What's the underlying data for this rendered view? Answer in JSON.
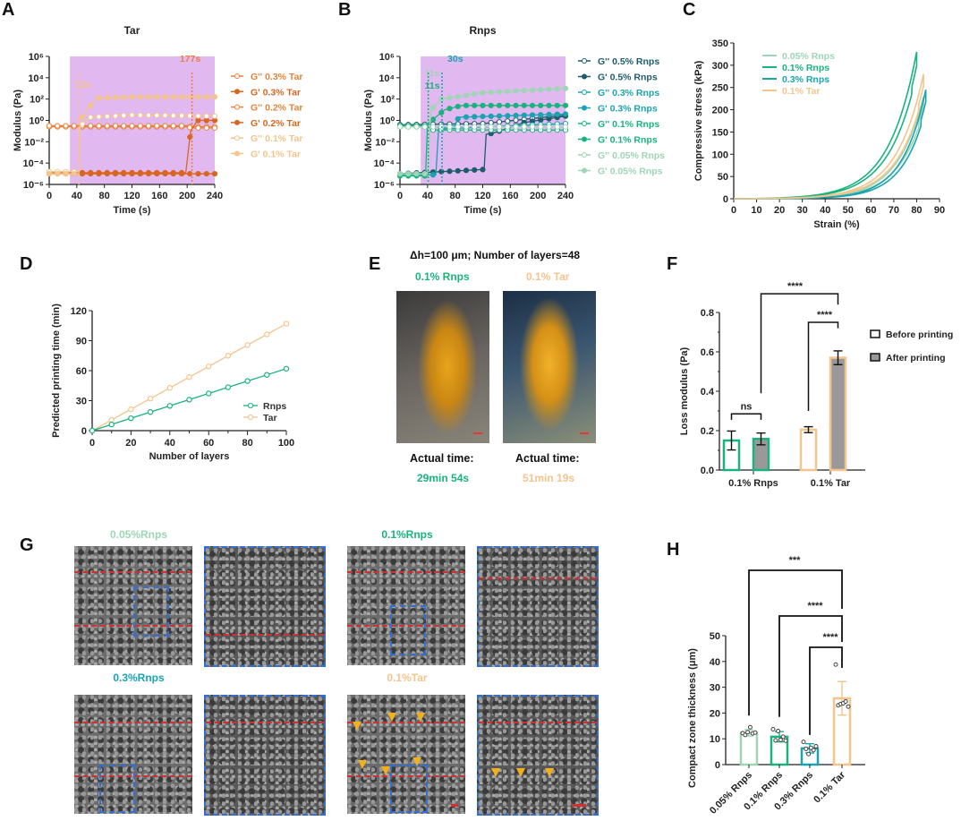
{
  "panels": {
    "A": "A",
    "B": "B",
    "C": "C",
    "D": "D",
    "E": "E",
    "F": "F",
    "G": "G",
    "H": "H"
  },
  "colors": {
    "tar_dark": "#d9661f",
    "tar_mid": "#e8823a",
    "tar_light": "#f3c48c",
    "rnps_05": "#1d5c6b",
    "rnps_03": "#1aa3b0",
    "rnps_01": "#19b37d",
    "rnps_005": "#9ed6b5",
    "shade": "#e2b8f0",
    "sem_box": "#2f6fd6",
    "sem_line": "#d32f2f",
    "arrow": "#f2b01e",
    "after_fill": "#999999"
  },
  "chart_data": [
    {
      "id": "A",
      "type": "line",
      "title": "Tar",
      "xlabel": "Time (s)",
      "ylabel": "Modulus (Pa)",
      "yscale": "log",
      "xlim": [
        0,
        240
      ],
      "ylim_exp": [
        -6,
        6
      ],
      "xticks": [
        "0",
        "40",
        "80",
        "120",
        "160",
        "200",
        "240"
      ],
      "yticks": [
        "10⁶",
        "10⁴",
        "10²",
        "10⁰",
        "10⁻²",
        "10⁻⁴",
        "10⁻⁶"
      ],
      "shaded_region": [
        30,
        240
      ],
      "annotations": [
        {
          "text": "13s",
          "x": 43,
          "color": "tar_light"
        },
        {
          "text": "177s",
          "x": 207,
          "color": "tar_mid"
        }
      ],
      "legend_position": "right",
      "series": [
        {
          "name": "G'' 0.3% Tar",
          "color": "tar_mid",
          "marker": "open",
          "x": [
            0,
            240
          ],
          "log10y": [
            -0.6,
            -0.6
          ]
        },
        {
          "name": "G' 0.3% Tar",
          "color": "tar_dark",
          "marker": "filled",
          "x": [
            0,
            240
          ],
          "log10y": [
            -5.0,
            -5.0
          ]
        },
        {
          "name": "G'' 0.2% Tar",
          "color": "tar_mid",
          "marker": "open",
          "x": [
            0,
            200,
            205,
            240
          ],
          "log10y": [
            -0.5,
            -0.5,
            -0.7,
            -0.7
          ]
        },
        {
          "name": "G' 0.2% Tar",
          "color": "tar_dark",
          "marker": "filled",
          "x": [
            0,
            198,
            205,
            215,
            240
          ],
          "log10y": [
            -4.9,
            -4.9,
            -1.0,
            0.0,
            0.0
          ]
        },
        {
          "name": "G'' 0.1% Tar",
          "color": "tar_light",
          "marker": "open",
          "x": [
            0,
            43,
            45,
            60,
            120,
            240
          ],
          "log10y": [
            -4.8,
            -4.8,
            -0.5,
            0.3,
            0.5,
            0.4
          ]
        },
        {
          "name": "G' 0.1% Tar",
          "color": "tar_light",
          "marker": "filled",
          "x": [
            0,
            43,
            45,
            55,
            70,
            120,
            240
          ],
          "log10y": [
            -5.0,
            -5.0,
            0.0,
            1.0,
            2.1,
            2.2,
            2.2
          ]
        }
      ]
    },
    {
      "id": "B",
      "type": "line",
      "title": "Rnps",
      "xlabel": "Time (s)",
      "ylabel": "Modulus (Pa)",
      "yscale": "log",
      "xlim": [
        0,
        240
      ],
      "ylim_exp": [
        -6,
        6
      ],
      "xticks": [
        "0",
        "40",
        "80",
        "120",
        "160",
        "200",
        "240"
      ],
      "yticks": [
        "10⁶",
        "10⁴",
        "10²",
        "10⁰",
        "10⁻²",
        "10⁻⁴",
        "10⁻⁶"
      ],
      "shaded_region": [
        30,
        240
      ],
      "annotations": [
        {
          "text": "11s",
          "x": 41,
          "color": "rnps_005"
        },
        {
          "text": "11s",
          "x": 41,
          "color": "rnps_01"
        },
        {
          "text": "30s",
          "x": 61,
          "color": "rnps_03"
        }
      ],
      "legend_position": "right",
      "series": [
        {
          "name": "G'' 0.5% Rnps",
          "color": "rnps_05",
          "marker": "open",
          "x": [
            0,
            120,
            240
          ],
          "log10y": [
            -0.4,
            -0.3,
            0.5
          ]
        },
        {
          "name": "G' 0.5% Rnps",
          "color": "rnps_05",
          "marker": "filled",
          "x": [
            0,
            122,
            125,
            135,
            180,
            240
          ],
          "log10y": [
            -5.0,
            -4.6,
            -1.3,
            -1.2,
            -0.2,
            0.4
          ]
        },
        {
          "name": "G'' 0.3% Rnps",
          "color": "rnps_03",
          "marker": "open",
          "x": [
            0,
            55,
            60,
            240
          ],
          "log10y": [
            -0.6,
            -0.6,
            -0.8,
            -0.3
          ]
        },
        {
          "name": "G' 0.3% Rnps",
          "color": "rnps_03",
          "marker": "filled",
          "x": [
            0,
            52,
            56,
            80,
            85,
            240
          ],
          "log10y": [
            -5.1,
            -5.1,
            -0.8,
            -0.5,
            0.3,
            0.6
          ]
        },
        {
          "name": "G'' 0.1% Rnps",
          "color": "rnps_01",
          "marker": "open",
          "x": [
            0,
            40,
            45,
            240
          ],
          "log10y": [
            -0.5,
            -0.5,
            -0.9,
            -0.9
          ]
        },
        {
          "name": "G' 0.1% Rnps",
          "color": "rnps_01",
          "marker": "filled",
          "x": [
            0,
            37,
            40,
            50,
            65,
            90,
            240
          ],
          "log10y": [
            -5.2,
            -5.2,
            -0.3,
            0.2,
            1.0,
            1.4,
            1.4
          ]
        },
        {
          "name": "G'' 0.05% Rnps",
          "color": "rnps_005",
          "marker": "open",
          "x": [
            0,
            40,
            240
          ],
          "log10y": [
            -0.6,
            -0.6,
            -0.6
          ]
        },
        {
          "name": "G' 0.05% Rnps",
          "color": "rnps_005",
          "marker": "filled",
          "x": [
            0,
            40,
            45,
            60,
            120,
            240
          ],
          "log10y": [
            -5.0,
            -5.0,
            1.0,
            2.0,
            2.6,
            3.0
          ]
        }
      ]
    },
    {
      "id": "C",
      "type": "line",
      "title": "",
      "xlabel": "Strain (%)",
      "ylabel": "Compressive stress (kPa)",
      "xlim": [
        0,
        90
      ],
      "ylim": [
        0,
        350
      ],
      "xticks": [
        "0",
        "10",
        "20",
        "30",
        "40",
        "50",
        "60",
        "70",
        "80",
        "90"
      ],
      "yticks": [
        "0",
        "50",
        "100",
        "150",
        "200",
        "250",
        "300",
        "350"
      ],
      "legend_position": "top-left",
      "series": [
        {
          "name": "0.05% Rnps",
          "color": "rnps_005",
          "peak_strain": 83,
          "peak_stress": 230,
          "k": 0.088
        },
        {
          "name": "0.1% Rnps",
          "color": "rnps_01",
          "peak_strain": 80,
          "peak_stress": 330,
          "k": 0.082
        },
        {
          "name": "0.3% Rnps",
          "color": "rnps_03",
          "peak_strain": 84,
          "peak_stress": 245,
          "k": 0.098
        },
        {
          "name": "0.1% Tar",
          "color": "tar_light",
          "peak_strain": 83,
          "peak_stress": 280,
          "k": 0.085
        }
      ]
    },
    {
      "id": "D",
      "type": "line",
      "xlabel": "Number of layers",
      "ylabel": "Predicted printing time (min)",
      "xlim": [
        0,
        100
      ],
      "ylim": [
        0,
        120
      ],
      "xticks": [
        "0",
        "20",
        "40",
        "60",
        "80",
        "100"
      ],
      "yticks": [
        "0",
        "30",
        "60",
        "90",
        "120"
      ],
      "legend_position": "bottom-right",
      "x": [
        0,
        10,
        20,
        30,
        40,
        50,
        60,
        70,
        80,
        90,
        100
      ],
      "series": [
        {
          "name": "Rnps",
          "color": "rnps_01",
          "values": [
            0,
            6.2,
            12.4,
            18.6,
            24.8,
            31,
            37.2,
            43.4,
            49.6,
            55.8,
            62
          ]
        },
        {
          "name": "Tar",
          "color": "tar_light",
          "values": [
            0,
            10.7,
            21.4,
            32.1,
            42.8,
            53.5,
            64.2,
            74.9,
            85.6,
            96.3,
            107
          ]
        }
      ]
    },
    {
      "id": "F",
      "type": "bar",
      "xlabel": "",
      "ylabel": "Loss modulus (Pa)",
      "ylim": [
        0,
        0.8
      ],
      "yticks": [
        "0.0",
        "0.2",
        "0.4",
        "0.6",
        "0.8"
      ],
      "categories": [
        "0.1% Rnps",
        "0.1% Tar"
      ],
      "legend_position": "right",
      "series": [
        {
          "name": "Before printing",
          "values": [
            0.15,
            0.205
          ],
          "errors": [
            0.048,
            0.015
          ]
        },
        {
          "name": "After printing",
          "values": [
            0.158,
            0.57
          ],
          "errors": [
            0.03,
            0.035
          ]
        }
      ],
      "significance": [
        {
          "label": "ns",
          "from": "0.1% Rnps Before",
          "to": "0.1% Rnps After"
        },
        {
          "label": "****",
          "from": "0.1% Tar Before",
          "to": "0.1% Tar After"
        },
        {
          "label": "****",
          "from": "0.1% Rnps After",
          "to": "0.1% Tar After"
        }
      ]
    },
    {
      "id": "H",
      "type": "bar",
      "ylabel": "Compact zone thickness (μm)",
      "ylim": [
        0,
        50
      ],
      "yticks": [
        "0",
        "10",
        "20",
        "30",
        "40",
        "50"
      ],
      "categories": [
        "0.05% Rnps",
        "0.1% Rnps",
        "0.3% Rnps",
        "0.1% Tar"
      ],
      "values": [
        12.3,
        10.8,
        6.3,
        25.7
      ],
      "errors": [
        1.2,
        2.0,
        1.8,
        6.5
      ],
      "points": [
        [
          12.2,
          11.5,
          12.6,
          14.5,
          12.1,
          12.4
        ],
        [
          13.7,
          9.4,
          13.0,
          9.6,
          10.8,
          9.3
        ],
        [
          8.8,
          6.1,
          4.1,
          6.5,
          5.6,
          7.1
        ],
        [
          38.8,
          23.0,
          23.5,
          23.8,
          24.5,
          22.5
        ]
      ],
      "colors": [
        "rnps_005",
        "rnps_01",
        "rnps_03",
        "tar_light"
      ],
      "significance": [
        {
          "label": "***",
          "from": "0.05% Rnps",
          "to": "0.1% Tar"
        },
        {
          "label": "****",
          "from": "0.1% Rnps",
          "to": "0.1% Tar"
        },
        {
          "label": "****",
          "from": "0.3% Rnps",
          "to": "0.1% Tar"
        }
      ]
    }
  ],
  "panelE": {
    "header": "Δh=100 μm; Number of layers=48",
    "left_label": "0.1% Rnps",
    "right_label": "0.1% Tar",
    "actual_label": "Actual time:",
    "left_time": "29min 54s",
    "right_time": "51min 19s"
  },
  "panelG": {
    "labels": [
      "0.05%Rnps",
      "0.1%Rnps",
      "0.3%Rnps",
      "0.1%Tar"
    ]
  }
}
